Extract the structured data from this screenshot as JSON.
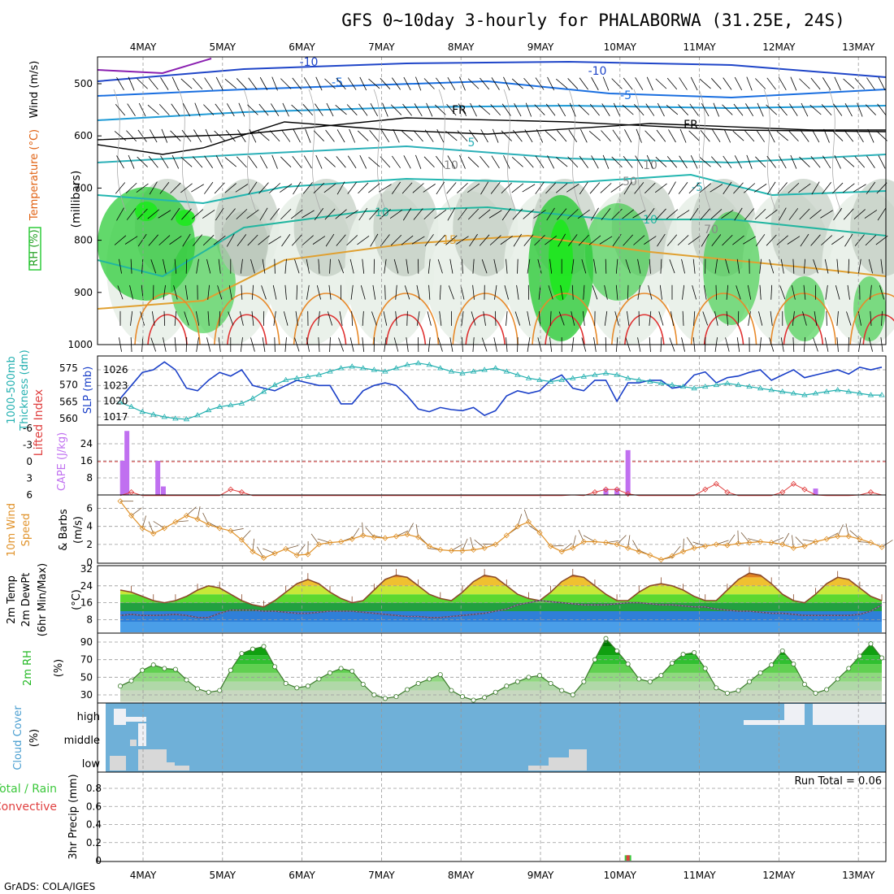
{
  "title": "GFS 0~10day 3-hourly for PHALABORWA (31.25E, 24S)",
  "footer": "GrADS: COLA/IGES",
  "chart_data": {
    "type": "meteogram",
    "dates": [
      "4MAY",
      "5MAY",
      "6MAY",
      "7MAY",
      "8MAY",
      "9MAY",
      "10MAY",
      "11MAY",
      "12MAY",
      "13MAY"
    ],
    "colors": {
      "rh_fill": "#2ecc3a",
      "rh_gray": "#b8c4b8",
      "temp_line": "#1f9bd6",
      "slp": "#1a3fc8",
      "thickness": "#23b0b0",
      "cape": "#c070f0",
      "lifted": "#e04040",
      "wind": "#e0922a",
      "temp": "#8b4a2a",
      "dewpt": "#b06ad0",
      "rh2m": "#22b822",
      "cloud": "#6fb0d8",
      "precip_total": "#3cc83c",
      "precip_conv": "#e04040"
    },
    "upper": {
      "ylabel": "(millibars)",
      "legend": [
        "RH (%)",
        "Temperature (°C)",
        "Wind (m/s)"
      ],
      "yticks": [
        "500",
        "600",
        "700",
        "800",
        "900",
        "1000"
      ],
      "contour_labels": [
        "-10",
        "-10",
        "-5",
        "-5",
        "5",
        "-5",
        "10",
        "10",
        "15",
        "FR",
        "FR",
        "10",
        "10",
        "50",
        "70"
      ]
    },
    "slp_panel": {
      "ylabel_left": [
        "1000-500mb",
        "Thickness (dm)"
      ],
      "ylabel_right": "SLP (mb)",
      "thickness_ticks": [
        "575",
        "570",
        "565",
        "560"
      ],
      "slp_ticks": [
        "1026",
        "1023",
        "1020",
        "1017"
      ],
      "slp": [
        1020.5,
        1023,
        1025.5,
        1026,
        1027.5,
        1026,
        1022.5,
        1022,
        1024,
        1025.5,
        1024.8,
        1026,
        1023,
        1022.5,
        1022,
        1023,
        1024,
        1023.5,
        1023,
        1023,
        1019.5,
        1019.5,
        1022,
        1023,
        1023.5,
        1023,
        1021,
        1018.5,
        1018,
        1018.8,
        1018.4,
        1018.2,
        1018.8,
        1017.3,
        1018.2,
        1021,
        1022,
        1021.5,
        1022,
        1024,
        1025,
        1022.5,
        1022,
        1024,
        1024,
        1020,
        1023.5,
        1023.5,
        1024,
        1024,
        1022.5,
        1022.8,
        1025,
        1025.6,
        1023.5,
        1024.5,
        1024.8,
        1025.5,
        1026,
        1024,
        1025,
        1026,
        1024.5,
        1025,
        1025.5,
        1026,
        1025.2,
        1026.5,
        1026,
        1026.5
      ],
      "thickness": [
        564.8,
        563.5,
        562,
        561.2,
        560.5,
        560,
        559.8,
        561,
        562.5,
        563.5,
        564,
        564.5,
        566,
        568,
        570,
        571.5,
        572,
        572.5,
        573,
        574,
        575,
        575.5,
        575,
        574.5,
        574,
        575,
        576,
        576.5,
        576,
        575,
        574,
        573.5,
        574,
        574.5,
        575,
        574,
        573,
        572,
        571.5,
        571,
        571.5,
        572,
        572.5,
        573,
        573.5,
        573,
        572,
        571.5,
        571,
        570.5,
        570,
        569.5,
        569,
        569.5,
        570,
        570.5,
        570,
        569.5,
        569,
        568.5,
        568,
        567.5,
        567,
        567.5,
        568,
        568.5,
        568,
        567.5,
        567,
        567
      ]
    },
    "cape_panel": {
      "ylabel_left": "Lifted Index",
      "ylabel_right": "CAPE (J/kg)",
      "li_ticks": [
        "-6",
        "-3",
        "0",
        "3",
        "6"
      ],
      "cape_ticks": [
        "24",
        "16",
        "8"
      ],
      "cape": [
        {
          "t": 0.2,
          "v": 16
        },
        {
          "t": 0.6,
          "v": 30
        },
        {
          "t": 3.4,
          "v": 16
        },
        {
          "t": 3.9,
          "v": 4
        },
        {
          "t": 44,
          "v": 3
        },
        {
          "t": 45,
          "v": 3
        },
        {
          "t": 46,
          "v": 21
        },
        {
          "t": 63,
          "v": 3
        }
      ],
      "lifted": [
        7,
        5.5,
        6.5,
        7,
        7.5,
        8,
        8,
        8,
        8,
        6.5,
        5,
        5.5,
        6.5,
        7.5,
        8,
        8,
        8,
        8,
        8,
        8,
        8,
        8,
        8,
        8,
        8,
        8,
        8,
        8,
        8,
        8,
        8,
        8,
        8,
        8,
        8,
        8,
        8,
        8,
        8,
        8,
        6.5,
        6,
        6.2,
        5.5,
        5,
        5,
        5.8,
        7,
        8,
        8,
        8,
        8,
        7,
        5,
        4,
        5.5,
        7,
        8,
        8,
        7,
        5.5,
        4,
        5,
        6,
        7,
        8,
        7,
        6,
        5.5,
        6
      ]
    },
    "wind_panel": {
      "ylabel_left": [
        "10m Wind",
        "Speed",
        "& Barbs"
      ],
      "ylabel_right": "(m/s)",
      "yticks": [
        "6",
        "4",
        "2",
        "0"
      ],
      "speed": [
        6.8,
        5.2,
        3.8,
        3.2,
        3.8,
        4.5,
        5.2,
        4.8,
        4.2,
        3.8,
        3.5,
        2.5,
        1.2,
        0.5,
        1.0,
        1.5,
        0.8,
        0.9,
        2.0,
        2.2,
        2.3,
        2.6,
        3.0,
        2.8,
        2.7,
        2.9,
        3.1,
        2.8,
        1.8,
        1.4,
        1.3,
        1.3,
        1.4,
        1.6,
        2.0,
        3.0,
        4.0,
        4.5,
        3.3,
        1.8,
        1.2,
        1.6,
        2.3,
        2.3,
        2.2,
        2.0,
        1.6,
        1.2,
        0.8,
        0.3,
        0.7,
        1.2,
        1.6,
        1.8,
        2.0,
        1.9,
        2.1,
        2.2,
        2.3,
        2.2,
        2.0,
        1.6,
        1.8,
        2.3,
        2.6,
        2.9,
        2.9,
        2.6,
        2.2,
        1.7
      ]
    },
    "temp_panel": {
      "ylabel_left": [
        "2m Temp",
        "2m DewPt",
        "(6hr Min/Max)"
      ],
      "ylabel_right": "(°C)",
      "yticks": [
        "32",
        "24",
        "16",
        "8"
      ],
      "temp": [
        22,
        21,
        19,
        17,
        16,
        17,
        19,
        22,
        24,
        23,
        20,
        17,
        15,
        14,
        17,
        21,
        25,
        27,
        25,
        21,
        18,
        16,
        17,
        22,
        27,
        29,
        28,
        24,
        20,
        18,
        17,
        21,
        26,
        29,
        28,
        24,
        20,
        18,
        17,
        21,
        26,
        29,
        28,
        24,
        20,
        17,
        17,
        21,
        24,
        25,
        24,
        22,
        19,
        17,
        17,
        22,
        27,
        30,
        29,
        25,
        20,
        17,
        16,
        20,
        25,
        28,
        27,
        23,
        19,
        17
      ],
      "dewpt": [
        10,
        10.5,
        10,
        10,
        10.2,
        10.5,
        10,
        9,
        9,
        11,
        12.5,
        12.5,
        12.5,
        12,
        12,
        11.5,
        11,
        11,
        11.5,
        12,
        12,
        12,
        11.5,
        11,
        10.5,
        10,
        9.5,
        9.5,
        9,
        9,
        9.5,
        10,
        10.5,
        11,
        12,
        13,
        15,
        16,
        17,
        16.5,
        16,
        15.5,
        15,
        15,
        15,
        15.5,
        16,
        16,
        15.5,
        15,
        15,
        14.5,
        14,
        14,
        13,
        12.5,
        12,
        12,
        11.5,
        11,
        11,
        10.5,
        10,
        10,
        10,
        10,
        10,
        10.5,
        12,
        15
      ]
    },
    "rh_panel": {
      "ylabel_left": "2m RH",
      "ylabel_right": "(%)",
      "yticks": [
        "90",
        "70",
        "50",
        "30"
      ],
      "rh": [
        40,
        46,
        58,
        64,
        60,
        59,
        47,
        37,
        33,
        35,
        58,
        77,
        82,
        85,
        62,
        43,
        38,
        40,
        48,
        55,
        60,
        57,
        42,
        30,
        26,
        28,
        36,
        43,
        48,
        53,
        35,
        28,
        24,
        27,
        33,
        40,
        45,
        50,
        52,
        43,
        35,
        30,
        45,
        70,
        94,
        80,
        65,
        48,
        45,
        52,
        66,
        76,
        78,
        60,
        38,
        32,
        35,
        45,
        55,
        64,
        80,
        65,
        42,
        32,
        36,
        48,
        60,
        74,
        88,
        72
      ]
    },
    "cloud_panel": {
      "ylabel_left": "Cloud Cover",
      "ylabel_right": "(%)",
      "levels": [
        "high",
        "middle",
        "low"
      ]
    },
    "precip_panel": {
      "ylabel_left": [
        "Total / Rain",
        "Convective"
      ],
      "ylabel_right": "3hr Precip (mm)",
      "yticks": [
        "0.8",
        "0.6",
        "0.4",
        "0.2",
        "0"
      ],
      "run_total": "Run Total = 0.06",
      "bars": [
        {
          "t": 46,
          "total": 0.06,
          "convective": 0.06
        }
      ]
    }
  }
}
